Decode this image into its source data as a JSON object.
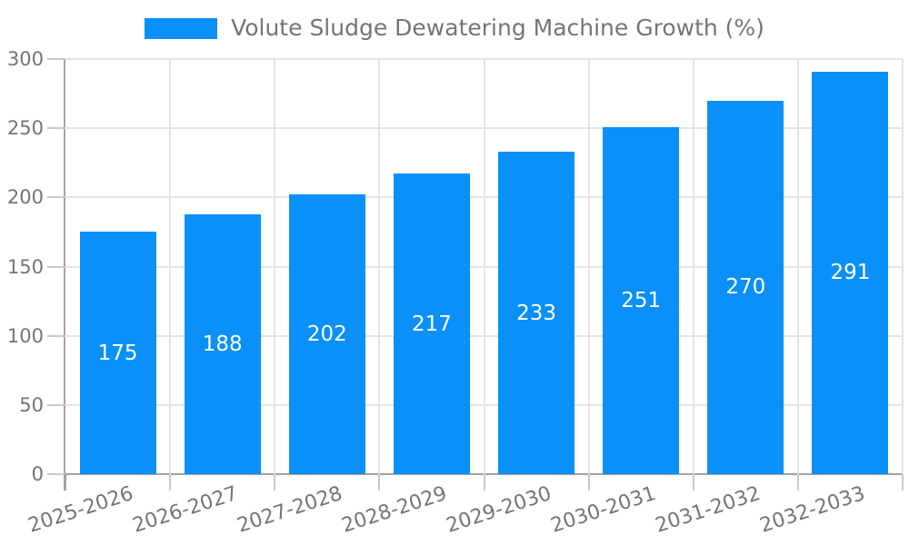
{
  "legend": {
    "label": "Volute Sludge Dewatering Machine Growth (%)"
  },
  "colors": {
    "bar": "#0a90f8",
    "grid": "#e4e4e4",
    "axis": "#a3a3a3",
    "tick": "#c9c9c9",
    "axis_text": "#757575",
    "value_text": "#ffffff",
    "background": "#ffffff"
  },
  "chart_data": {
    "type": "bar",
    "title": "Volute Sludge Dewatering Machine Growth (%)",
    "categories": [
      "2025-2026",
      "2026-2027",
      "2027-2028",
      "2028-2029",
      "2029-2030",
      "2030-2031",
      "2031-2032",
      "2032-2033"
    ],
    "values": [
      175,
      188,
      202,
      217,
      233,
      251,
      270,
      291
    ],
    "series": [
      {
        "name": "Volute Sludge Dewatering Machine Growth (%)",
        "values": [
          175,
          188,
          202,
          217,
          233,
          251,
          270,
          291
        ]
      }
    ],
    "xlabel": "",
    "ylabel": "",
    "ylim": [
      0,
      300
    ],
    "yticks": [
      0,
      50,
      100,
      150,
      200,
      250,
      300
    ],
    "grid": true,
    "legend_position": "top-center",
    "value_labels": "inside-middle",
    "xtick_rotation_deg": -18
  }
}
